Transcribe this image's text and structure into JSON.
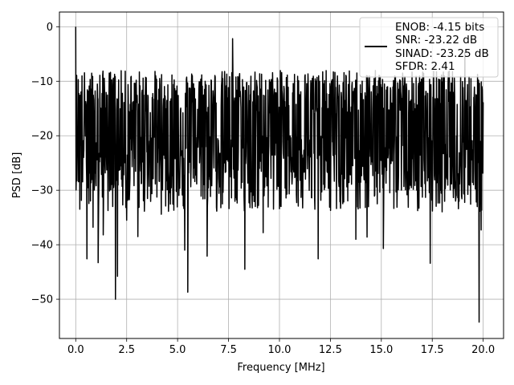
{
  "chart_data": {
    "type": "line",
    "title": "",
    "xlabel": "Frequency [MHz]",
    "ylabel": "PSD [dB]",
    "xlim": [
      -0.8,
      21.0
    ],
    "ylim": [
      -57.2,
      2.7
    ],
    "xticks": [
      0.0,
      2.5,
      5.0,
      7.5,
      10.0,
      12.5,
      15.0,
      17.5,
      20.0
    ],
    "xtick_labels": [
      "0.0",
      "2.5",
      "5.0",
      "7.5",
      "10.0",
      "12.5",
      "15.0",
      "17.5",
      "20.0"
    ],
    "yticks": [
      0,
      -10,
      -20,
      -30,
      -40,
      -50
    ],
    "ytick_labels": [
      "0",
      "−10",
      "−20",
      "−30",
      "−40",
      "−50"
    ],
    "grid": true,
    "legend_position": "top-right",
    "line_color": "#000000",
    "legend": [
      "ENOB: -4.15 bits",
      "SNR: -23.22 dB",
      "SINAD: -23.25 dB",
      "SFDR: 2.41"
    ],
    "series": [
      {
        "x_start": 0.0,
        "x_end": 20.0,
        "noise_band_top": -8,
        "noise_band_bottom": -30,
        "median": -18,
        "peaks": [
          {
            "x": 0.0,
            "y": 0.0
          },
          {
            "x": 7.7,
            "y": -2.2
          },
          {
            "x": 19.1,
            "y": -4.7
          }
        ],
        "dips": [
          {
            "x": 0.55,
            "y": -42.6
          },
          {
            "x": 0.85,
            "y": -36.8
          },
          {
            "x": 1.1,
            "y": -43.3
          },
          {
            "x": 1.35,
            "y": -38.2
          },
          {
            "x": 1.95,
            "y": -50.0
          },
          {
            "x": 2.05,
            "y": -45.8
          },
          {
            "x": 2.5,
            "y": -35.5
          },
          {
            "x": 3.05,
            "y": -38.5
          },
          {
            "x": 4.2,
            "y": -34.4
          },
          {
            "x": 5.35,
            "y": -41.0
          },
          {
            "x": 5.5,
            "y": -48.7
          },
          {
            "x": 6.45,
            "y": -42.1
          },
          {
            "x": 8.3,
            "y": -44.5
          },
          {
            "x": 9.2,
            "y": -37.8
          },
          {
            "x": 11.9,
            "y": -42.6
          },
          {
            "x": 13.75,
            "y": -39.0
          },
          {
            "x": 14.3,
            "y": -38.6
          },
          {
            "x": 15.1,
            "y": -40.7
          },
          {
            "x": 17.4,
            "y": -43.4
          },
          {
            "x": 19.8,
            "y": -54.2
          },
          {
            "x": 19.9,
            "y": -37.3
          }
        ]
      }
    ]
  }
}
